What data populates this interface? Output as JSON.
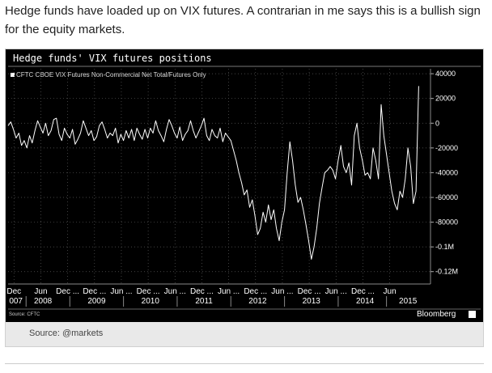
{
  "intro": "Hedge funds have loaded up on VIX futures. A contrarian in me says this is a bullish sign for the equity markets.",
  "caption": "Source: @markets",
  "chart_data": {
    "type": "line",
    "title": "Hedge funds' VIX futures positions",
    "legend": "CFTC CBOE VIX Futures Non-Commercial Net Total/Futures Only",
    "legend_position": "top-left",
    "source": "Source: CFTC",
    "brand": "Bloomberg",
    "grid": true,
    "line_color": "#ffffff",
    "ylim": [
      -130000,
      44000
    ],
    "y_ticks": [
      {
        "value": 40000,
        "label": "40000"
      },
      {
        "value": 20000,
        "label": "20000"
      },
      {
        "value": 0,
        "label": "0"
      },
      {
        "value": -20000,
        "label": "-20000"
      },
      {
        "value": -40000,
        "label": "-40000"
      },
      {
        "value": -60000,
        "label": "-60000"
      },
      {
        "value": -80000,
        "label": "-80000"
      },
      {
        "value": -100000,
        "label": "-0.1M"
      },
      {
        "value": -120000,
        "label": "-0.12M"
      }
    ],
    "xlim": [
      2007.85,
      2015.72
    ],
    "x_ticks": [
      {
        "x": 2007.96,
        "label": "Dec"
      },
      {
        "x": 2008.46,
        "label": "Jun"
      },
      {
        "x": 2008.96,
        "label": "Dec ..."
      },
      {
        "x": 2009.46,
        "label": "Dec ..."
      },
      {
        "x": 2009.96,
        "label": "Jun ..."
      },
      {
        "x": 2010.46,
        "label": "Dec ..."
      },
      {
        "x": 2010.96,
        "label": "Jun ..."
      },
      {
        "x": 2011.46,
        "label": "Dec ..."
      },
      {
        "x": 2011.96,
        "label": "Jun ..."
      },
      {
        "x": 2012.46,
        "label": "Dec ..."
      },
      {
        "x": 2012.96,
        "label": "Jun ..."
      },
      {
        "x": 2013.46,
        "label": "Dec ..."
      },
      {
        "x": 2013.96,
        "label": "Jun ..."
      },
      {
        "x": 2014.46,
        "label": "Dec ..."
      },
      {
        "x": 2014.96,
        "label": "Jun"
      }
    ],
    "x_years": [
      {
        "x": 2007.87,
        "label": "007"
      },
      {
        "x": 2008.5,
        "label": "2008"
      },
      {
        "x": 2009.5,
        "label": "2009"
      },
      {
        "x": 2010.5,
        "label": "2010"
      },
      {
        "x": 2011.5,
        "label": "2011"
      },
      {
        "x": 2012.5,
        "label": "2012"
      },
      {
        "x": 2013.5,
        "label": "2013"
      },
      {
        "x": 2014.5,
        "label": "2014"
      },
      {
        "x": 2015.3,
        "label": "2015"
      }
    ],
    "series": [
      {
        "x": [
          2007.85,
          2007.9,
          2007.95,
          2008.0,
          2008.05,
          2008.1,
          2008.15,
          2008.2,
          2008.25,
          2008.3,
          2008.35,
          2008.4,
          2008.45,
          2008.5,
          2008.55,
          2008.6,
          2008.65,
          2008.7,
          2008.75,
          2008.8,
          2008.85,
          2008.9,
          2008.95,
          2009.0,
          2009.05,
          2009.1,
          2009.15,
          2009.2,
          2009.25,
          2009.3,
          2009.35,
          2009.4,
          2009.45,
          2009.5,
          2009.55,
          2009.6,
          2009.65,
          2009.7,
          2009.75,
          2009.8,
          2009.85,
          2009.9,
          2009.95,
          2010.0,
          2010.05,
          2010.1,
          2010.15,
          2010.2,
          2010.25,
          2010.3,
          2010.35,
          2010.4,
          2010.45,
          2010.5,
          2010.55,
          2010.6,
          2010.65,
          2010.7,
          2010.75,
          2010.8,
          2010.85,
          2010.9,
          2010.95,
          2011.0,
          2011.05,
          2011.1,
          2011.15,
          2011.2,
          2011.25,
          2011.3,
          2011.35,
          2011.4,
          2011.45,
          2011.5,
          2011.55,
          2011.6,
          2011.65,
          2011.7,
          2011.75,
          2011.8,
          2011.85,
          2011.9,
          2011.95,
          2012.0,
          2012.05,
          2012.1,
          2012.15,
          2012.2,
          2012.25,
          2012.3,
          2012.35,
          2012.4,
          2012.45,
          2012.5,
          2012.55,
          2012.6,
          2012.65,
          2012.7,
          2012.75,
          2012.8,
          2012.85,
          2012.9,
          2012.95,
          2013.0,
          2013.05,
          2013.1,
          2013.15,
          2013.2,
          2013.25,
          2013.3,
          2013.35,
          2013.4,
          2013.45,
          2013.5,
          2013.55,
          2013.6,
          2013.65,
          2013.7,
          2013.75,
          2013.8,
          2013.85,
          2013.9,
          2013.95,
          2014.0,
          2014.05,
          2014.1,
          2014.15,
          2014.2,
          2014.25,
          2014.3,
          2014.35,
          2014.4,
          2014.45,
          2014.5,
          2014.55,
          2014.6,
          2014.65,
          2014.7,
          2014.75,
          2014.8,
          2014.85,
          2014.9,
          2014.95,
          2015.0,
          2015.05,
          2015.1,
          2015.15,
          2015.2,
          2015.25,
          2015.3,
          2015.35,
          2015.4,
          2015.45,
          2015.5
        ],
        "values": [
          -2000,
          1000,
          -5000,
          -12000,
          -8000,
          -18000,
          -14000,
          -20000,
          -10000,
          -16000,
          -6000,
          2000,
          -3000,
          -8000,
          0,
          -10000,
          -6000,
          3000,
          4000,
          -9000,
          -14000,
          -4000,
          -9000,
          -12000,
          -5000,
          -17000,
          -13000,
          -8000,
          2000,
          -4000,
          -10000,
          -6000,
          -14000,
          -11000,
          -2000,
          1000,
          -5000,
          -12000,
          -8000,
          -10000,
          -4000,
          -16000,
          -9000,
          -14000,
          -6000,
          -12000,
          -5000,
          -14000,
          -4000,
          -9000,
          -13000,
          -5000,
          -12000,
          -4000,
          -8000,
          2000,
          -6000,
          -10000,
          -15000,
          -5000,
          3000,
          -2000,
          -8000,
          -12000,
          -3000,
          -14000,
          -9000,
          -6000,
          2000,
          -6000,
          -12000,
          -7000,
          -2000,
          4000,
          -10000,
          -14000,
          -5000,
          -10000,
          -12000,
          -4000,
          -15000,
          -8000,
          -11000,
          -14000,
          -22000,
          -30000,
          -40000,
          -48000,
          -58000,
          -54000,
          -68000,
          -62000,
          -75000,
          -90000,
          -85000,
          -72000,
          -80000,
          -66000,
          -78000,
          -70000,
          -85000,
          -95000,
          -80000,
          -70000,
          -40000,
          -15000,
          -30000,
          -50000,
          -64000,
          -60000,
          -70000,
          -82000,
          -95000,
          -110000,
          -100000,
          -85000,
          -65000,
          -52000,
          -40000,
          -38000,
          -35000,
          -38000,
          -45000,
          -30000,
          -18000,
          -35000,
          -40000,
          -32000,
          -50000,
          -10000,
          0,
          -20000,
          -30000,
          -42000,
          -40000,
          -45000,
          -20000,
          -30000,
          -45000,
          15000,
          -10000,
          -25000,
          -40000,
          -55000,
          -65000,
          -70000,
          -55000,
          -60000,
          -45000,
          -20000,
          -35000,
          -65000,
          -55000,
          30000
        ]
      }
    ]
  }
}
